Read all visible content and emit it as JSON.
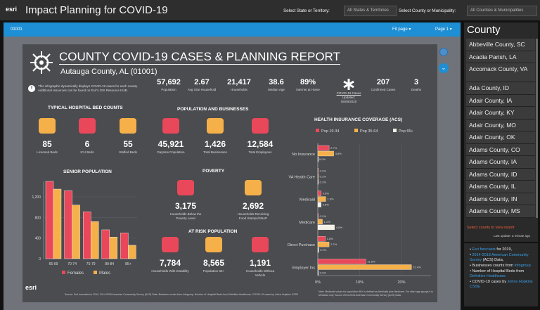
{
  "header": {
    "logo": "esri",
    "title": "Impact Planning for COVID-19",
    "state_label": "Select State or Territory:",
    "state_value": "All States & Territories",
    "county_label": "Select County or Municipality:",
    "county_value": "All Counties & Municipalities"
  },
  "viewer": {
    "id": "01001",
    "fit": "Fit page ▾",
    "page": "Page 1 ▾"
  },
  "report": {
    "title": "COUNTY COVID-19 CASES & PLANNING REPORT",
    "subtitle": "Autauga County, AL (01001)",
    "info": "This infographic dynamically displays COVID-19 cases for each county. Additional resources can be found on Esri's GIS Resource HUB.",
    "stats": [
      {
        "value": "57,692",
        "label": "Population"
      },
      {
        "value": "2.67",
        "label": "Avg Size Household"
      },
      {
        "value": "21,417",
        "label": "Households"
      },
      {
        "value": "38.6",
        "label": "Median Age"
      },
      {
        "value": "89%",
        "label": "Internet at Home"
      },
      {
        "value": "",
        "label": "COVID-19 Cases",
        "sub": "Updated: 05/09/2020"
      },
      {
        "value": "207",
        "label": "Confirmed Cases"
      },
      {
        "value": "3",
        "label": "Deaths"
      }
    ],
    "beds": {
      "title": "TYPICAL HOSPITAL BED COUNTS",
      "items": [
        {
          "value": "85",
          "label": "Licensed Beds"
        },
        {
          "value": "6",
          "label": "ICU Beds"
        },
        {
          "value": "55",
          "label": "Staffed Beds"
        }
      ]
    },
    "pop": {
      "title": "POPULATION AND BUSINESSES",
      "items": [
        {
          "value": "45,921",
          "label": "Daytime Population"
        },
        {
          "value": "1,426",
          "label": "Total Businesses"
        },
        {
          "value": "12,584",
          "label": "Total Employees"
        }
      ]
    },
    "poverty": {
      "title": "POVERTY",
      "items": [
        {
          "value": "3,175",
          "label": "Households Below the Poverty Level"
        },
        {
          "value": "2,692",
          "label": "Households Receiving Food Stamps/SNAP"
        }
      ]
    },
    "risk": {
      "title": "AT RISK POPULATION",
      "items": [
        {
          "value": "7,784",
          "label": "Households With Disability"
        },
        {
          "value": "8,565",
          "label": "Population 65+"
        },
        {
          "value": "1,191",
          "label": "Households Without Vehicle"
        }
      ]
    },
    "footer": "Source: Esri forecasts for 2019, 2014-2018 American Community Survey (ACS) Data. Business counts from Infogroup. Number of Hospital Beds from Definitive Healthcare. COVID-19 cases by Johns Hopkins CSSE",
    "ins_note": "Note: Medicaid values for population 65+ is defined as Medicaid plus Medicare. For other age groups it is Medicaid only. Source 2014-2018 American Community Survey (ACS) Data."
  },
  "chart_data": [
    {
      "type": "bar",
      "title": "SENIOR POPULATION",
      "categories": [
        "65-69",
        "70-74",
        "75-79",
        "80-84",
        "85+"
      ],
      "series": [
        {
          "name": "Females",
          "values": [
            1500,
            1320,
            910,
            560,
            500
          ],
          "color": "#e8485a"
        },
        {
          "name": "Males",
          "values": [
            1350,
            1040,
            720,
            420,
            260
          ],
          "color": "#f6b04a"
        }
      ],
      "yticks": [
        "0",
        "400",
        "800",
        "1,200"
      ],
      "ylim": [
        0,
        1500
      ],
      "legend": "bottom"
    },
    {
      "type": "bar",
      "orientation": "horizontal",
      "title": "HEALTH INSURANCE COVERAGE (ACS)",
      "categories": [
        "No Insurance",
        "VA Health Care",
        "Medicaid",
        "Medicare",
        "Direct Purchase",
        "Employer Ins"
      ],
      "series": [
        {
          "name": "Pop 19-34",
          "values": [
            2.7,
            0.1,
            0.8,
            0.1,
            1.8,
            11.5
          ],
          "color": "#e8485a"
        },
        {
          "name": "Pop 35-64",
          "values": [
            3.8,
            0.1,
            1.9,
            1.1,
            2.7,
            22.4
          ],
          "color": "#f6b04a"
        },
        {
          "name": "Pop 65+",
          "values": [
            0.0,
            0.1,
            0.8,
            4.0,
            0.2,
            0.1
          ],
          "color": "#f5f0e6"
        }
      ],
      "xticks": [
        "0%",
        "10%",
        "20%"
      ],
      "xlim": [
        0,
        24
      ],
      "legend": "top"
    }
  ],
  "sidebar": {
    "title": "County",
    "items": [
      "Abbeville County, SC",
      "Acadia Parish, LA",
      "Accomack County, VA",
      "Ada County, ID",
      "Adair County, IA",
      "Adair County, KY",
      "Adair County, MO",
      "Adair County, OK",
      "Adams County, CO",
      "Adams County, IA",
      "Adams County, ID",
      "Adams County, IL",
      "Adams County, IN",
      "Adams County, MS"
    ],
    "hint": "Select county to view report",
    "update": "Last update: a minute ago",
    "sources": [
      [
        "Esri forecasts",
        " for 2019,"
      ],
      [
        "2014-2018 American Community Survey",
        " (ACS) Data,"
      ],
      [
        "",
        "Businesses counts from ",
        "Infogroup."
      ],
      [
        "",
        "Number of Hospital Beds from ",
        "Definitive Healthcare."
      ],
      [
        "",
        "COVID-19 cases by ",
        "Johns Hopkins CSSE"
      ]
    ]
  }
}
